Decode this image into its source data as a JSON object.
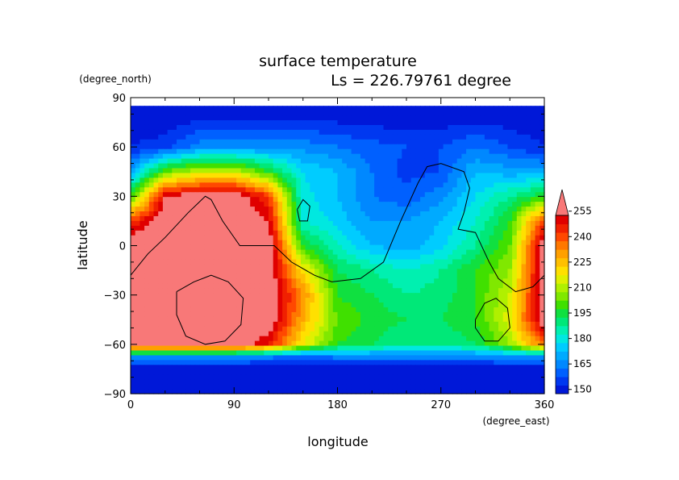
{
  "chart_data": {
    "type": "heatmap",
    "title": "surface temperature",
    "subtitle": "Ls = 226.79761 degree",
    "xlabel": "longitude",
    "ylabel": "latitude",
    "x_unit": "(degree_east)",
    "y_unit": "(degree_north)",
    "xlim": [
      0,
      360
    ],
    "ylim": [
      -90,
      90
    ],
    "x_ticks": [
      "0",
      "90",
      "180",
      "270",
      "360"
    ],
    "y_ticks": [
      "90",
      "60",
      "30",
      "0",
      "−30",
      "−60",
      "−90"
    ],
    "x_tick_values": [
      0,
      90,
      180,
      270,
      360
    ],
    "y_tick_values": [
      90,
      60,
      30,
      0,
      -30,
      -60,
      -90
    ],
    "colorbar": {
      "levels": [
        150,
        155,
        160,
        165,
        170,
        175,
        180,
        185,
        190,
        195,
        200,
        205,
        210,
        215,
        220,
        225,
        230,
        235,
        240,
        245,
        250,
        255,
        260
      ],
      "tick_labels": [
        "150",
        "165",
        "180",
        "195",
        "210",
        "225",
        "240",
        "255"
      ],
      "tick_values": [
        150,
        165,
        180,
        195,
        210,
        225,
        240,
        255
      ],
      "over_color": "#f87878",
      "colors": [
        "#0018d8",
        "#0038f0",
        "#0060ff",
        "#0088ff",
        "#00aaff",
        "#00ccff",
        "#00e8e0",
        "#00f0b0",
        "#00e878",
        "#10e040",
        "#40e000",
        "#80e800",
        "#b0f000",
        "#e0f000",
        "#ffe000",
        "#ffc000",
        "#ffa000",
        "#ff7800",
        "#ff4800",
        "#f02000",
        "#e00000",
        "#f87878"
      ]
    },
    "field_grid": {
      "lon": [
        0,
        30,
        60,
        90,
        120,
        150,
        180,
        210,
        240,
        270,
        300,
        330,
        360
      ],
      "lat": [
        85,
        60,
        45,
        30,
        15,
        0,
        -15,
        -30,
        -45,
        -60,
        -67,
        -75,
        -90
      ],
      "values": [
        [
          148,
          148,
          148,
          148,
          148,
          148,
          148,
          148,
          148,
          148,
          148,
          148,
          148
        ],
        [
          155,
          158,
          168,
          168,
          168,
          168,
          165,
          162,
          160,
          160,
          165,
          160,
          155
        ],
        [
          172,
          205,
          215,
          215,
          200,
          180,
          175,
          165,
          158,
          160,
          175,
          172,
          172
        ],
        [
          200,
          255,
          262,
          262,
          245,
          182,
          175,
          165,
          162,
          168,
          180,
          190,
          200
        ],
        [
          245,
          262,
          262,
          262,
          255,
          185,
          178,
          170,
          170,
          175,
          185,
          200,
          245
        ],
        [
          262,
          262,
          262,
          262,
          262,
          200,
          185,
          175,
          172,
          178,
          190,
          205,
          262
        ],
        [
          262,
          262,
          262,
          262,
          262,
          222,
          195,
          190,
          185,
          190,
          200,
          210,
          262
        ],
        [
          262,
          262,
          262,
          262,
          262,
          235,
          200,
          195,
          190,
          192,
          200,
          215,
          262
        ],
        [
          262,
          262,
          262,
          262,
          262,
          230,
          205,
          198,
          195,
          195,
          200,
          218,
          262
        ],
        [
          262,
          262,
          262,
          262,
          250,
          220,
          200,
          195,
          190,
          190,
          195,
          210,
          240
        ],
        [
          172,
          172,
          172,
          172,
          168,
          165,
          168,
          168,
          168,
          168,
          168,
          172,
          172
        ],
        [
          150,
          150,
          150,
          150,
          150,
          150,
          150,
          150,
          150,
          150,
          150,
          150,
          150
        ],
        [
          148,
          148,
          148,
          148,
          148,
          148,
          148,
          148,
          148,
          148,
          148,
          148,
          148
        ]
      ]
    },
    "contours": [
      {
        "name": "coastline-main",
        "points": [
          [
            0,
            -18
          ],
          [
            15,
            -5
          ],
          [
            30,
            5
          ],
          [
            50,
            20
          ],
          [
            65,
            30
          ],
          [
            70,
            28
          ],
          [
            80,
            15
          ],
          [
            95,
            0
          ],
          [
            110,
            0
          ],
          [
            125,
            0
          ],
          [
            140,
            -10
          ],
          [
            160,
            -18
          ],
          [
            175,
            -22
          ],
          [
            200,
            -20
          ],
          [
            220,
            -10
          ],
          [
            235,
            15
          ],
          [
            250,
            38
          ],
          [
            258,
            48
          ],
          [
            270,
            50
          ],
          [
            290,
            45
          ],
          [
            295,
            35
          ],
          [
            290,
            20
          ],
          [
            285,
            10
          ],
          [
            300,
            8
          ],
          [
            312,
            -10
          ],
          [
            320,
            -20
          ],
          [
            335,
            -28
          ],
          [
            350,
            -25
          ],
          [
            360,
            -18
          ]
        ]
      },
      {
        "name": "south-crater-left",
        "points": [
          [
            40,
            -28
          ],
          [
            55,
            -22
          ],
          [
            70,
            -18
          ],
          [
            85,
            -22
          ],
          [
            98,
            -32
          ],
          [
            96,
            -48
          ],
          [
            82,
            -58
          ],
          [
            65,
            -60
          ],
          [
            48,
            -55
          ],
          [
            40,
            -42
          ],
          [
            40,
            -28
          ]
        ]
      },
      {
        "name": "south-crater-right",
        "points": [
          [
            300,
            -45
          ],
          [
            308,
            -35
          ],
          [
            318,
            -32
          ],
          [
            328,
            -38
          ],
          [
            330,
            -50
          ],
          [
            320,
            -58
          ],
          [
            308,
            -58
          ],
          [
            300,
            -50
          ],
          [
            300,
            -45
          ]
        ]
      },
      {
        "name": "small-island",
        "points": [
          [
            145,
            22
          ],
          [
            150,
            28
          ],
          [
            156,
            24
          ],
          [
            154,
            15
          ],
          [
            147,
            15
          ],
          [
            145,
            22
          ]
        ]
      }
    ]
  }
}
